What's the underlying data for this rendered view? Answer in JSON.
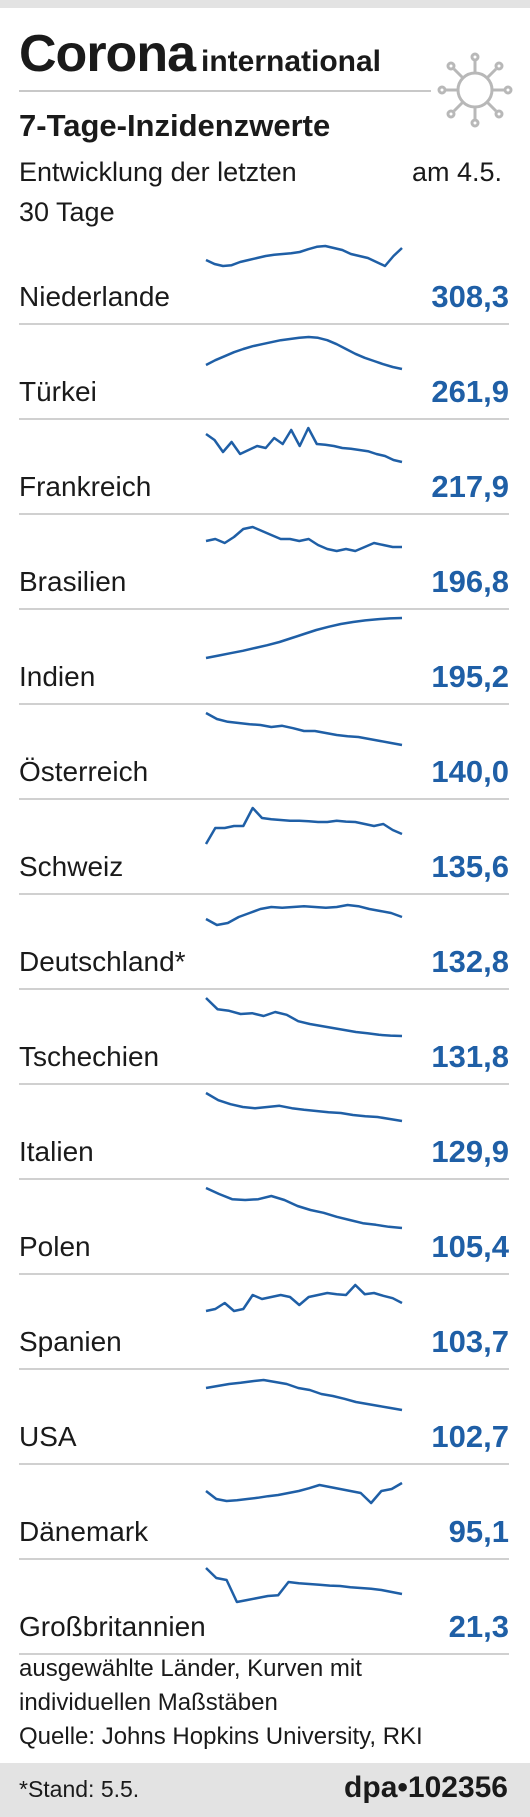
{
  "header": {
    "title": "Corona",
    "title_suffix": "international",
    "subtitle": "7-Tage-Inzidenzwerte",
    "desc_left": "Entwicklung der letzten 30 Tage",
    "desc_right": "am 4.5."
  },
  "colors": {
    "line": "#1f5fa6",
    "value": "#1f5fa6",
    "separator": "#d0d0d0",
    "bar": "#e3e3e3"
  },
  "chart_data": {
    "type": "line",
    "title": "7-Tage-Inzidenzwerte",
    "note": "Kurven mit individuellen Maßstäben",
    "series": [
      {
        "name": "Niederlande",
        "value": "308,3",
        "values": [
          0.45,
          0.35,
          0.3,
          0.32,
          0.4,
          0.45,
          0.5,
          0.55,
          0.58,
          0.6,
          0.62,
          0.65,
          0.72,
          0.78,
          0.8,
          0.75,
          0.7,
          0.6,
          0.55,
          0.5,
          0.4,
          0.3,
          0.55,
          0.75
        ]
      },
      {
        "name": "Türkei",
        "value": "261,9",
        "values": [
          0.2,
          0.32,
          0.42,
          0.52,
          0.6,
          0.67,
          0.72,
          0.77,
          0.82,
          0.85,
          0.88,
          0.9,
          0.88,
          0.82,
          0.72,
          0.6,
          0.48,
          0.38,
          0.3,
          0.22,
          0.15,
          0.1
        ]
      },
      {
        "name": "Frankreich",
        "value": "217,9",
        "values": [
          0.85,
          0.7,
          0.4,
          0.65,
          0.35,
          0.45,
          0.55,
          0.5,
          0.75,
          0.6,
          0.95,
          0.55,
          1.0,
          0.6,
          0.58,
          0.55,
          0.5,
          0.48,
          0.45,
          0.42,
          0.35,
          0.3,
          0.2,
          0.15
        ]
      },
      {
        "name": "Brasilien",
        "value": "196,8",
        "values": [
          0.55,
          0.6,
          0.5,
          0.65,
          0.85,
          0.9,
          0.8,
          0.7,
          0.6,
          0.6,
          0.55,
          0.6,
          0.45,
          0.35,
          0.3,
          0.35,
          0.3,
          0.4,
          0.5,
          0.45,
          0.4,
          0.4
        ]
      },
      {
        "name": "Indien",
        "value": "195,2",
        "values": [
          0.0,
          0.06,
          0.12,
          0.18,
          0.25,
          0.32,
          0.4,
          0.5,
          0.6,
          0.7,
          0.78,
          0.85,
          0.9,
          0.94,
          0.97,
          0.99,
          1.0
        ]
      },
      {
        "name": "Österreich",
        "value": "140,0",
        "values": [
          1.0,
          0.85,
          0.78,
          0.75,
          0.72,
          0.7,
          0.65,
          0.68,
          0.62,
          0.55,
          0.55,
          0.5,
          0.45,
          0.42,
          0.4,
          0.35,
          0.3,
          0.25,
          0.2
        ]
      },
      {
        "name": "Schweiz",
        "value": "135,6",
        "values": [
          0.1,
          0.5,
          0.5,
          0.55,
          0.55,
          1.0,
          0.75,
          0.72,
          0.7,
          0.68,
          0.68,
          0.67,
          0.65,
          0.65,
          0.68,
          0.66,
          0.65,
          0.6,
          0.55,
          0.6,
          0.45,
          0.35
        ]
      },
      {
        "name": "Deutschland*",
        "value": "132,8",
        "values": [
          0.6,
          0.45,
          0.5,
          0.65,
          0.75,
          0.85,
          0.9,
          0.88,
          0.9,
          0.92,
          0.9,
          0.88,
          0.9,
          0.95,
          0.92,
          0.85,
          0.8,
          0.75,
          0.65
        ]
      },
      {
        "name": "Tschechien",
        "value": "131,8",
        "values": [
          1.0,
          0.72,
          0.68,
          0.6,
          0.62,
          0.55,
          0.65,
          0.58,
          0.42,
          0.35,
          0.3,
          0.25,
          0.2,
          0.15,
          0.12,
          0.08,
          0.06,
          0.05
        ]
      },
      {
        "name": "Italien",
        "value": "129,9",
        "values": [
          1.0,
          0.82,
          0.72,
          0.65,
          0.62,
          0.65,
          0.68,
          0.62,
          0.58,
          0.55,
          0.52,
          0.5,
          0.45,
          0.42,
          0.4,
          0.35,
          0.3
        ]
      },
      {
        "name": "Polen",
        "value": "105,4",
        "values": [
          1.0,
          0.85,
          0.72,
          0.7,
          0.72,
          0.8,
          0.7,
          0.55,
          0.45,
          0.38,
          0.28,
          0.2,
          0.12,
          0.08,
          0.03,
          0.0
        ]
      },
      {
        "name": "Spanien",
        "value": "103,7",
        "values": [
          0.3,
          0.35,
          0.5,
          0.3,
          0.35,
          0.7,
          0.6,
          0.65,
          0.7,
          0.65,
          0.45,
          0.65,
          0.7,
          0.75,
          0.72,
          0.7,
          0.95,
          0.72,
          0.75,
          0.68,
          0.62,
          0.5
        ]
      },
      {
        "name": "USA",
        "value": "102,7",
        "values": [
          0.75,
          0.8,
          0.85,
          0.88,
          0.92,
          0.95,
          0.9,
          0.85,
          0.75,
          0.7,
          0.6,
          0.55,
          0.48,
          0.4,
          0.35,
          0.3,
          0.25,
          0.2
        ]
      },
      {
        "name": "Dänemark",
        "value": "95,1",
        "values": [
          0.55,
          0.35,
          0.3,
          0.32,
          0.35,
          0.38,
          0.42,
          0.45,
          0.5,
          0.55,
          0.62,
          0.7,
          0.65,
          0.6,
          0.55,
          0.5,
          0.25,
          0.55,
          0.6,
          0.75
        ]
      },
      {
        "name": "Großbritannien",
        "value": "21,3",
        "values": [
          1.0,
          0.75,
          0.7,
          0.15,
          0.2,
          0.25,
          0.3,
          0.32,
          0.65,
          0.62,
          0.6,
          0.58,
          0.56,
          0.55,
          0.52,
          0.5,
          0.48,
          0.45,
          0.4,
          0.35
        ]
      }
    ]
  },
  "footer": {
    "note_line1": "ausgewählte Länder, Kurven mit",
    "note_line2": "individuellen Maßstäben",
    "source": "Quelle: Johns Hopkins University, RKI",
    "stand": "*Stand: 5.5.",
    "credit": "dpa•102356"
  }
}
